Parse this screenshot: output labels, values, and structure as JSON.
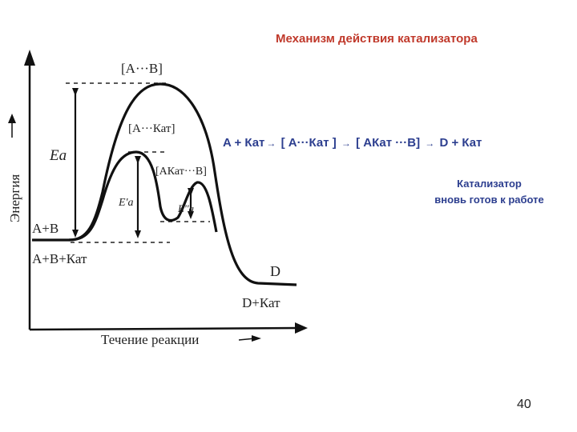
{
  "title": "Механизм действия катализатора",
  "equation": {
    "part1": "A + Кат",
    "part2": "[ A···Кат ]",
    "part3": "[ AКат ···B]",
    "part4": "D + Кат",
    "arrow": "→"
  },
  "note": {
    "line1": "Катализатор",
    "line2": "вновь готов к работе"
  },
  "page_number": "40",
  "diagram": {
    "y_axis_label": "Энергия",
    "x_axis_label": "Течение реакции",
    "label_transition_uncat": "[A···B]",
    "label_transition_cat1": "[A···Кат]",
    "label_transition_cat2": "[AКат···B]",
    "label_ea": "Ea",
    "label_ea1": "E'a",
    "label_ea2": "E''a",
    "label_reactants": "A+B",
    "label_reactants_cat": "A+B+Кат",
    "label_product": "D",
    "label_product_cat": "D+Кат"
  }
}
